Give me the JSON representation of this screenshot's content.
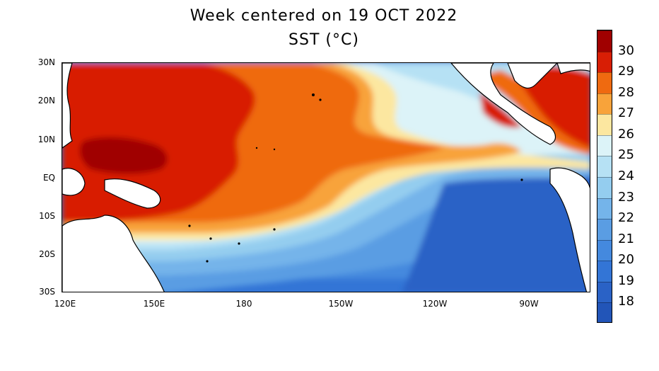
{
  "title_line1": "Week centered on 19 OCT 2022",
  "title_line2": "SST (°C)",
  "map": {
    "lon_ticks": [
      "120E",
      "150E",
      "180",
      "150W",
      "120W",
      "90W"
    ],
    "lat_ticks": [
      "30N",
      "20N",
      "10N",
      "EQ",
      "10S",
      "20S",
      "30S"
    ],
    "lon_range": [
      "120E",
      "75W"
    ],
    "lat_range": [
      "30S",
      "30N"
    ]
  },
  "colorbar": {
    "labels": [
      "30",
      "29",
      "28",
      "27",
      "26",
      "25",
      "24",
      "23",
      "22",
      "21",
      "20",
      "19",
      "18"
    ],
    "colors": [
      "#a00000",
      "#d81e05",
      "#ef6a10",
      "#f8a33a",
      "#fce7a0",
      "#dcf3f8",
      "#b6e1f4",
      "#94cdef",
      "#74b4ea",
      "#5a9de3",
      "#4489de",
      "#3375d6",
      "#2a62c6",
      "#2255b8"
    ],
    "colors_note_is_not_shown": ""
  }
}
